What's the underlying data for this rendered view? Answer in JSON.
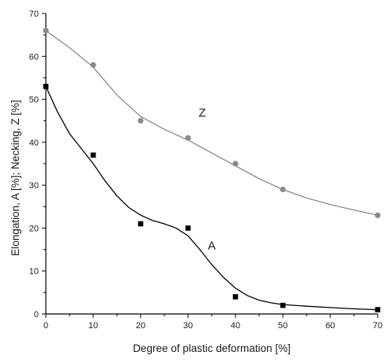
{
  "chart_data": {
    "type": "scatter",
    "xlabel": "Degree of plastic deformation [%]",
    "ylabel": "Elongation, A [%]; Necking, Z [%]",
    "xlim": [
      0,
      70
    ],
    "ylim": [
      0,
      70
    ],
    "xticks": [
      0,
      10,
      20,
      30,
      40,
      50,
      60,
      70
    ],
    "yticks": [
      0,
      10,
      20,
      30,
      40,
      50,
      60,
      70
    ],
    "grid": false,
    "series": [
      {
        "name": "Z",
        "marker": "circle",
        "color": "#8a8a8a",
        "x": [
          0,
          10,
          20,
          30,
          40,
          50,
          70
        ],
        "y": [
          66,
          58,
          45,
          41,
          35,
          29,
          23
        ],
        "curve_x": [
          0,
          5,
          10,
          15,
          20,
          25,
          30,
          35,
          40,
          45,
          50,
          55,
          60,
          65,
          70
        ],
        "curve_y": [
          66,
          62,
          57.5,
          51,
          46,
          43,
          40.5,
          37.5,
          34.5,
          31.5,
          29,
          27,
          25.5,
          24.2,
          23
        ]
      },
      {
        "name": "A",
        "marker": "square",
        "color": "#000000",
        "x": [
          0,
          10,
          20,
          30,
          40,
          50,
          70
        ],
        "y": [
          53,
          37,
          21,
          20,
          4,
          2,
          1
        ],
        "curve_x": [
          0,
          2.5,
          5,
          7.5,
          10,
          12.5,
          15,
          17.5,
          20,
          22.5,
          25,
          27.5,
          30,
          32.5,
          35,
          37.5,
          40,
          42.5,
          45,
          47.5,
          50,
          55,
          60,
          65,
          70
        ],
        "curve_y": [
          53,
          47,
          42,
          38.5,
          35,
          31,
          27.5,
          24.8,
          23,
          21.8,
          21,
          20,
          18.2,
          15,
          11.5,
          8.5,
          6,
          4.3,
          3.2,
          2.6,
          2.2,
          1.8,
          1.5,
          1.2,
          1
        ]
      }
    ]
  }
}
